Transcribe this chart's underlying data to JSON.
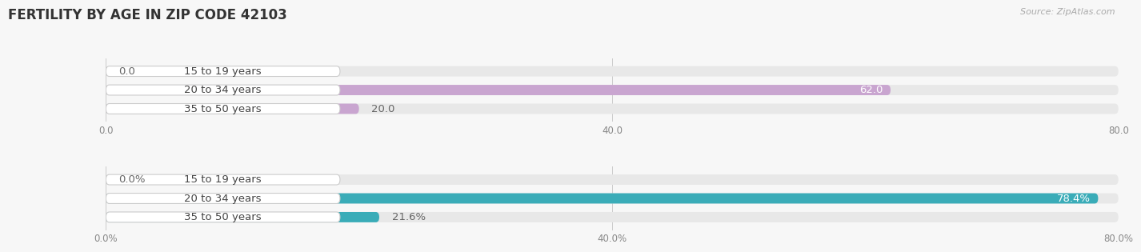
{
  "title": "FERTILITY BY AGE IN ZIP CODE 42103",
  "source_text": "Source: ZipAtlas.com",
  "top_chart": {
    "categories": [
      "15 to 19 years",
      "20 to 34 years",
      "35 to 50 years"
    ],
    "values": [
      0.0,
      62.0,
      20.0
    ],
    "x_max": 80.0,
    "x_ticks": [
      0.0,
      40.0,
      80.0
    ],
    "x_tick_labels": [
      "0.0",
      "40.0",
      "80.0"
    ],
    "bar_color": "#c9a5d0",
    "bar_bg_color": "#e8e8e8",
    "label_badge_color": "#ffffff",
    "label_text_color": "#444444",
    "value_color_inside": "#ffffff",
    "value_color_outside": "#666666"
  },
  "bottom_chart": {
    "categories": [
      "15 to 19 years",
      "20 to 34 years",
      "35 to 50 years"
    ],
    "values": [
      0.0,
      78.4,
      21.6
    ],
    "x_max": 80.0,
    "x_ticks": [
      0.0,
      40.0,
      80.0
    ],
    "x_tick_labels": [
      "0.0%",
      "40.0%",
      "80.0%"
    ],
    "bar_color": "#3aacb8",
    "bar_bg_color": "#e8e8e8",
    "label_badge_color": "#ffffff",
    "label_text_color": "#444444",
    "value_color_inside": "#ffffff",
    "value_color_outside": "#666666"
  },
  "page_bg_color": "#f7f7f7",
  "bar_height": 0.55,
  "label_fontsize": 9.5,
  "value_fontsize": 9.5,
  "title_fontsize": 12,
  "source_fontsize": 8
}
